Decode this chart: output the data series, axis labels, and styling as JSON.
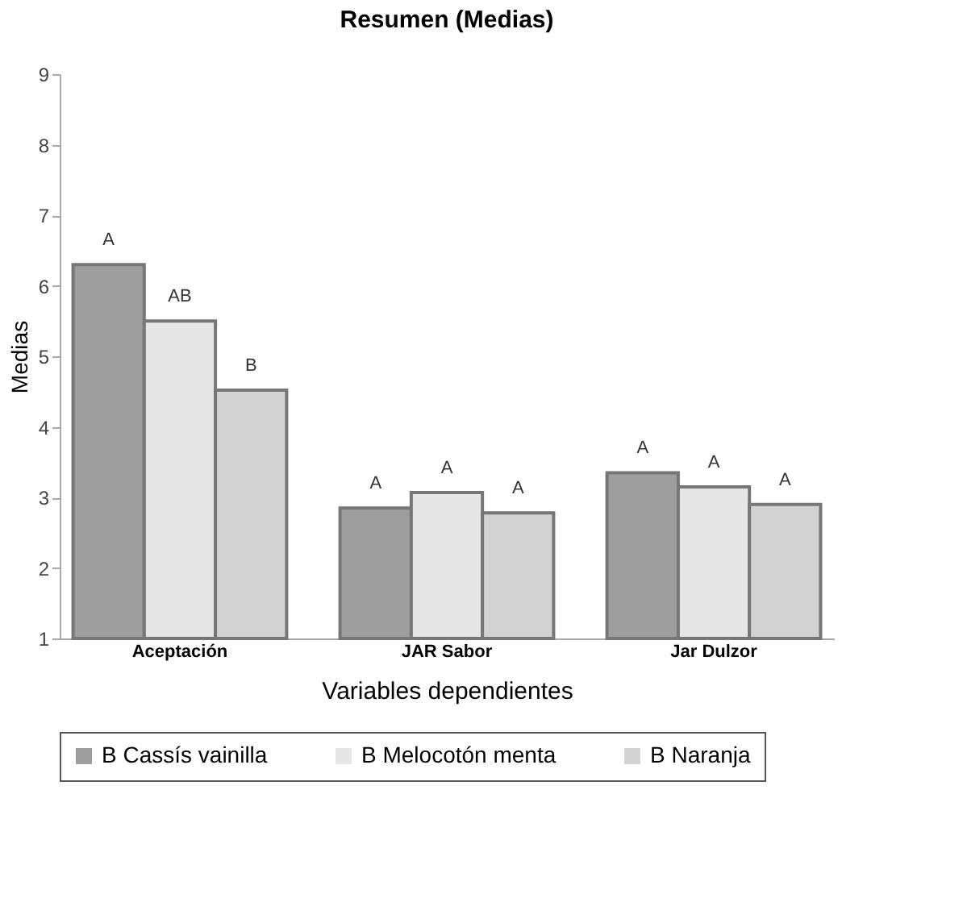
{
  "chart_data": {
    "type": "bar",
    "title": "Resumen (Medias)",
    "xlabel": "Variables dependientes",
    "ylabel": "Medias",
    "categories": [
      "Aceptación",
      "JAR Sabor",
      "Jar Dulzor"
    ],
    "series": [
      {
        "name": "B Cassís vainilla",
        "color": "#9e9e9e",
        "values": [
          6.3,
          2.85,
          3.35
        ],
        "value_labels": [
          "A",
          "A",
          "A"
        ]
      },
      {
        "name": "B Melocotón menta",
        "color": "#e6e6e6",
        "values": [
          5.5,
          3.07,
          3.15
        ],
        "value_labels": [
          "AB",
          "A",
          "A"
        ]
      },
      {
        "name": "B Naranja",
        "color": "#d2d2d2",
        "values": [
          4.52,
          2.78,
          2.9
        ],
        "value_labels": [
          "B",
          "A",
          "A"
        ]
      }
    ],
    "ylim": [
      1,
      9
    ],
    "yticks": [
      1,
      2,
      3,
      4,
      5,
      6,
      7,
      8,
      9
    ],
    "grid": false,
    "legend": "bottom"
  }
}
